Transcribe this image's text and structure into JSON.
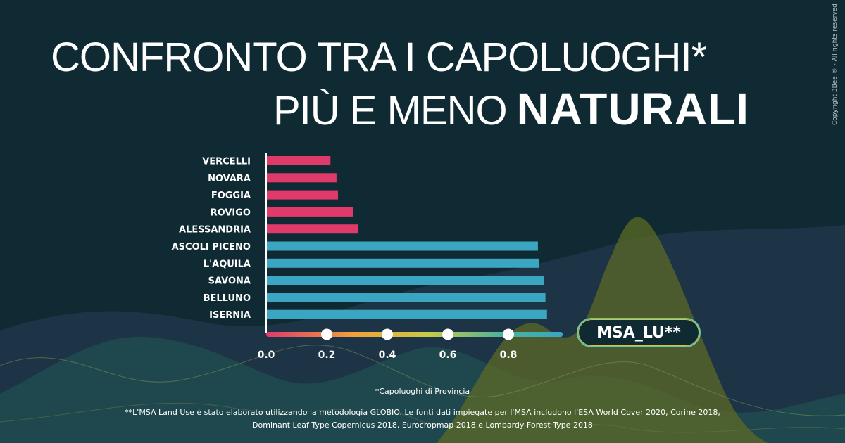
{
  "title": {
    "line1": "CONFRONTO TRA I CAPOLUOGHI*",
    "line2_regular": "PIÙ E MENO",
    "line2_bold": "NATURALI"
  },
  "copyright": "Copyright 3Bee ® - All rights reserved",
  "badge": "MSA_LU**",
  "notes": {
    "footnote1": "*Capoluoghi di Provincia",
    "footnote2_line1": "**L'MSA Land Use è stato elaborato utilizzando la metodologia GLOBIO. Le fonti dati impiegate per l'MSA includono l'ESA World Cover 2020, Corine 2018,",
    "footnote2_line2": "Dominant Leaf Type Copernicus 2018, Eurocropmap 2018 e Lombardy Forest Type 2018"
  },
  "colors": {
    "background": "#0f2a33",
    "low": "#e03a6a",
    "high": "#3aa6c2"
  },
  "chart_data": {
    "type": "bar",
    "orientation": "horizontal",
    "categories": [
      "VERCELLI",
      "NOVARA",
      "FOGGIA",
      "ROVIGO",
      "ALESSANDRIA",
      "ASCOLI PICENO",
      "L'AQUILA",
      "SAVONA",
      "BELLUNO",
      "ISERNIA"
    ],
    "values": [
      0.21,
      0.23,
      0.235,
      0.285,
      0.3,
      0.895,
      0.9,
      0.915,
      0.92,
      0.925
    ],
    "groups": [
      "low",
      "low",
      "low",
      "low",
      "low",
      "high",
      "high",
      "high",
      "high",
      "high"
    ],
    "x_ticks": [
      "0.0",
      "0.2",
      "0.4",
      "0.6",
      "0.8"
    ],
    "x_tick_values": [
      0,
      0.2,
      0.4,
      0.6,
      0.8
    ],
    "xlim": [
      0,
      0.97
    ],
    "grid": false
  }
}
